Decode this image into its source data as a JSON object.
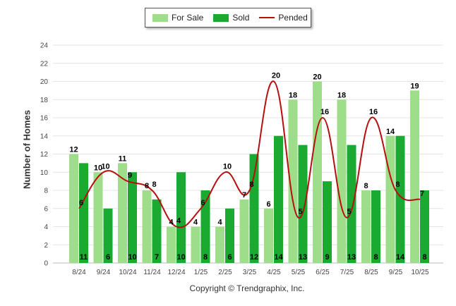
{
  "chart_data": {
    "type": "bar",
    "title": "",
    "xlabel": "",
    "ylabel": "Number of Homes",
    "ylim": [
      0,
      24
    ],
    "yticks": [
      0,
      2,
      4,
      6,
      8,
      10,
      12,
      14,
      16,
      18,
      20,
      22,
      24
    ],
    "categories": [
      "8/24",
      "9/24",
      "10/24",
      "11/24",
      "12/24",
      "1/25",
      "2/25",
      "3/25",
      "4/25",
      "5/25",
      "6/25",
      "7/25",
      "8/25",
      "9/25",
      "10/25"
    ],
    "series": [
      {
        "name": "For Sale",
        "kind": "bar",
        "color": "#9ede8a",
        "values": [
          12,
          10,
          11,
          8,
          4,
          4,
          4,
          7,
          6,
          18,
          20,
          18,
          8,
          14,
          19
        ]
      },
      {
        "name": "Sold",
        "kind": "bar",
        "color": "#1aaa32",
        "values": [
          11,
          6,
          10,
          7,
          10,
          8,
          6,
          12,
          14,
          13,
          9,
          13,
          8,
          14,
          8
        ]
      },
      {
        "name": "Pended",
        "kind": "line",
        "color": "#b50f0f",
        "values": [
          6,
          10,
          9,
          8,
          4,
          6,
          10,
          8,
          20,
          5,
          16,
          5,
          16,
          8,
          7
        ]
      }
    ],
    "legend_position": "top-center",
    "grid": true
  },
  "footer": {
    "copyright": "Copyright © Trendgraphix, Inc."
  }
}
